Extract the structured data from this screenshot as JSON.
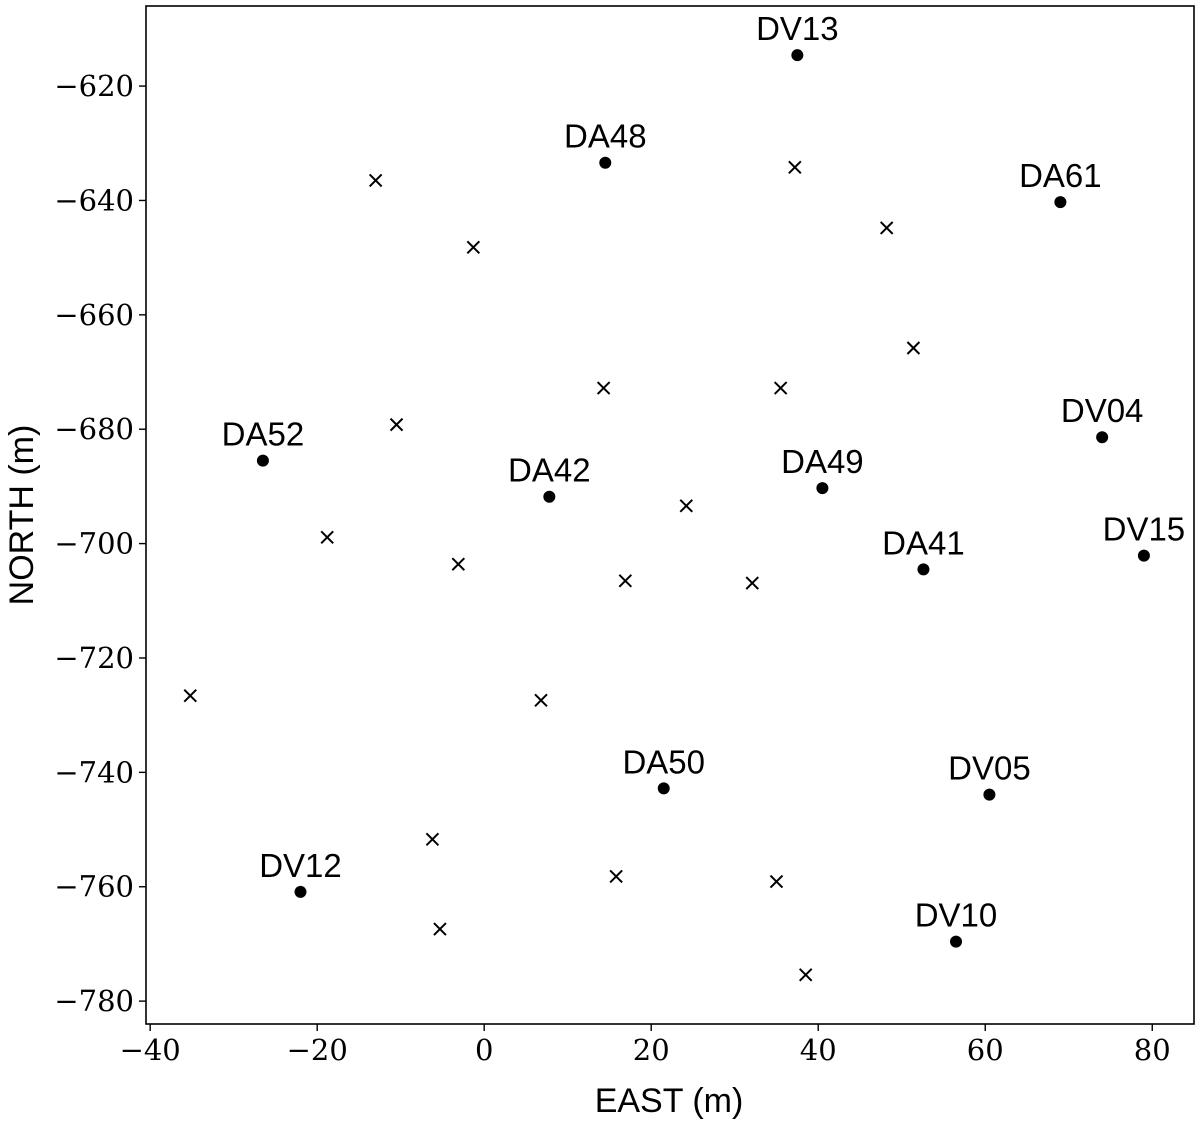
{
  "chart_data": {
    "type": "scatter",
    "xlabel": "EAST (m)",
    "ylabel": "NORTH (m)",
    "xlim": [
      -40.5,
      85
    ],
    "ylim": [
      -784,
      -606
    ],
    "grid": false,
    "x_ticks": [
      -40,
      -20,
      0,
      20,
      40,
      60,
      80
    ],
    "y_ticks": [
      -620,
      -640,
      -660,
      -680,
      -700,
      -720,
      -740,
      -760,
      -780
    ],
    "x_tick_labels": [
      "−40",
      "−20",
      "0",
      "20",
      "40",
      "60",
      "80"
    ],
    "y_tick_labels": [
      "−620",
      "−640",
      "−660",
      "−680",
      "−700",
      "−720",
      "−740",
      "−760",
      "−780"
    ],
    "series": [
      {
        "marker": "filled-circle",
        "color": "#000000",
        "points": [
          {
            "label": "DV13",
            "x": 37.5,
            "y": -614.6
          },
          {
            "label": "DA48",
            "x": 14.5,
            "y": -633.4
          },
          {
            "label": "DA61",
            "x": 69.0,
            "y": -640.3
          },
          {
            "label": "DV04",
            "x": 74.0,
            "y": -681.4
          },
          {
            "label": "DA52",
            "x": -26.5,
            "y": -685.5
          },
          {
            "label": "DA49",
            "x": 40.5,
            "y": -690.3
          },
          {
            "label": "DA42",
            "x": 7.8,
            "y": -691.8
          },
          {
            "label": "DA41",
            "x": 52.6,
            "y": -704.5
          },
          {
            "label": "DV15",
            "x": 79.0,
            "y": -702.1
          },
          {
            "label": "DA50",
            "x": 21.5,
            "y": -742.8
          },
          {
            "label": "DV05",
            "x": 60.5,
            "y": -743.9
          },
          {
            "label": "DV12",
            "x": -22.0,
            "y": -760.9
          },
          {
            "label": "DV10",
            "x": 56.5,
            "y": -769.6
          }
        ]
      },
      {
        "marker": "x",
        "color": "#000000",
        "points": [
          {
            "x": -13.0,
            "y": -636.5
          },
          {
            "x": 37.2,
            "y": -634.2
          },
          {
            "x": -1.3,
            "y": -648.2
          },
          {
            "x": 48.2,
            "y": -644.8
          },
          {
            "x": 51.4,
            "y": -665.8
          },
          {
            "x": 14.3,
            "y": -672.8
          },
          {
            "x": 35.5,
            "y": -672.8
          },
          {
            "x": -10.5,
            "y": -679.2
          },
          {
            "x": 24.2,
            "y": -693.4
          },
          {
            "x": -18.8,
            "y": -698.9
          },
          {
            "x": -3.1,
            "y": -703.6
          },
          {
            "x": 16.9,
            "y": -706.5
          },
          {
            "x": 32.1,
            "y": -706.9
          },
          {
            "x": -35.2,
            "y": -726.6
          },
          {
            "x": 6.8,
            "y": -727.4
          },
          {
            "x": -6.2,
            "y": -751.7
          },
          {
            "x": 15.8,
            "y": -758.2
          },
          {
            "x": 35.0,
            "y": -759.1
          },
          {
            "x": -5.3,
            "y": -767.4
          },
          {
            "x": 38.5,
            "y": -775.4
          }
        ]
      }
    ]
  }
}
